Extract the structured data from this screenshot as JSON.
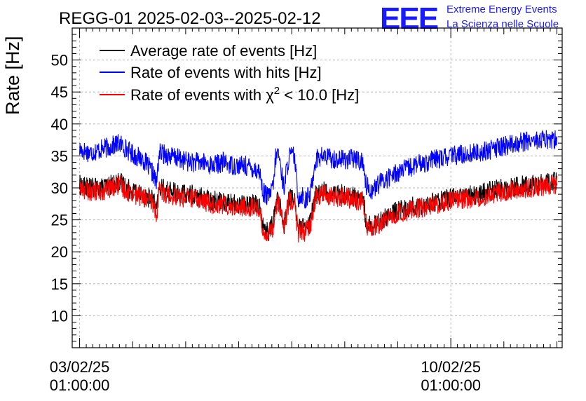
{
  "header": {
    "title": "REGG-01 2025-02-03--2025-02-12",
    "logo_mark": "EEE",
    "logo_line1": "Extreme Energy Events",
    "logo_line2": "La Scienza nelle Scuole"
  },
  "chart_data": {
    "type": "line",
    "title": "REGG-01 2025-02-03--2025-02-12",
    "ylabel": "Rate [Hz]",
    "xlabel": "",
    "ylim": [
      5,
      55
    ],
    "xlim": [
      -0.14,
      9.1
    ],
    "grid": true,
    "legend_position": "top-left",
    "y_ticks": [
      10,
      15,
      20,
      25,
      30,
      35,
      40,
      45,
      50
    ],
    "x_ticks": [
      {
        "x": 0,
        "line1": "03/02/25",
        "line2": "01:00:00"
      },
      {
        "x": 7,
        "line1": "10/02/25",
        "line2": "01:00:00"
      }
    ],
    "x_unit": "days since 03/02/25 01:00:00",
    "legend": [
      {
        "label": "Average rate of events [Hz]",
        "color": "#000000"
      },
      {
        "label": "Rate of events with hits [Hz]",
        "color": "#0000ff"
      },
      {
        "label_prefix": "Rate of events with ",
        "label_symbol": "χ",
        "label_sup": "2",
        "label_suffix": " < 10.0 [Hz]",
        "color": "#ff0000"
      }
    ],
    "series": [
      {
        "name": "Rate of events with hits [Hz]",
        "color": "#0000ff",
        "x": [
          0.0,
          0.2,
          0.4,
          0.6,
          0.75,
          0.9,
          1.05,
          1.2,
          1.4,
          1.45,
          1.5,
          1.7,
          1.9,
          2.1,
          2.3,
          2.5,
          2.7,
          2.9,
          3.1,
          3.3,
          3.4,
          3.45,
          3.55,
          3.65,
          3.7,
          3.75,
          3.85,
          3.95,
          4.05,
          4.12,
          4.2,
          4.25,
          4.35,
          4.45,
          4.6,
          4.8,
          5.0,
          5.2,
          5.35,
          5.4,
          5.5,
          5.7,
          6.0,
          6.5,
          7.0,
          7.5,
          8.0,
          8.5,
          9.0
        ],
        "values": [
          36.0,
          35.5,
          36.0,
          36.5,
          37.0,
          36.0,
          35.0,
          34.5,
          32.0,
          30.5,
          35.5,
          35.0,
          34.5,
          34.0,
          34.0,
          33.5,
          34.0,
          33.5,
          33.5,
          33.0,
          32.5,
          29.5,
          28.5,
          30.0,
          35.0,
          35.5,
          30.0,
          35.0,
          35.0,
          28.5,
          29.0,
          28.0,
          29.0,
          34.5,
          35.0,
          34.5,
          34.5,
          34.5,
          34.0,
          30.5,
          29.5,
          31.0,
          32.5,
          34.0,
          35.0,
          35.5,
          36.5,
          37.5,
          37.5
        ]
      },
      {
        "name": "Average rate of events [Hz]",
        "color": "#000000",
        "x": [
          0.0,
          0.2,
          0.4,
          0.6,
          0.75,
          0.9,
          1.05,
          1.2,
          1.4,
          1.45,
          1.5,
          1.7,
          1.9,
          2.1,
          2.3,
          2.5,
          2.7,
          2.9,
          3.1,
          3.3,
          3.4,
          3.45,
          3.55,
          3.65,
          3.7,
          3.75,
          3.85,
          3.95,
          4.05,
          4.12,
          4.2,
          4.25,
          4.35,
          4.45,
          4.6,
          4.8,
          5.0,
          5.2,
          5.35,
          5.4,
          5.5,
          5.7,
          6.0,
          6.5,
          7.0,
          7.5,
          8.0,
          8.5,
          9.0
        ],
        "values": [
          30.5,
          30.0,
          30.0,
          30.5,
          31.0,
          30.0,
          29.5,
          29.0,
          28.0,
          26.0,
          30.0,
          29.5,
          29.0,
          29.0,
          28.5,
          28.0,
          28.0,
          27.5,
          27.5,
          27.5,
          27.0,
          24.0,
          23.0,
          24.5,
          27.5,
          28.5,
          24.0,
          28.5,
          28.5,
          23.5,
          24.0,
          23.5,
          24.5,
          29.0,
          29.5,
          29.0,
          29.0,
          28.5,
          28.5,
          24.5,
          24.0,
          25.0,
          26.5,
          27.5,
          28.5,
          29.0,
          30.0,
          30.5,
          31.0
        ]
      },
      {
        "name": "Rate of events with χ2 < 10.0 [Hz]",
        "color": "#ff0000",
        "x": [
          0.0,
          0.2,
          0.4,
          0.6,
          0.75,
          0.9,
          1.05,
          1.2,
          1.4,
          1.45,
          1.5,
          1.7,
          1.9,
          2.1,
          2.3,
          2.5,
          2.7,
          2.9,
          3.1,
          3.3,
          3.4,
          3.45,
          3.55,
          3.65,
          3.7,
          3.75,
          3.85,
          3.95,
          4.05,
          4.12,
          4.2,
          4.25,
          4.35,
          4.45,
          4.6,
          4.8,
          5.0,
          5.2,
          5.35,
          5.4,
          5.5,
          5.7,
          6.0,
          6.5,
          7.0,
          7.5,
          8.0,
          8.5,
          9.0
        ],
        "values": [
          30.0,
          29.5,
          29.5,
          30.0,
          30.5,
          29.5,
          29.0,
          28.5,
          27.5,
          25.5,
          29.5,
          29.0,
          28.5,
          28.5,
          28.0,
          27.5,
          27.5,
          27.0,
          27.0,
          27.0,
          26.5,
          23.5,
          22.5,
          24.0,
          27.0,
          28.0,
          23.5,
          28.0,
          28.0,
          23.0,
          23.5,
          23.0,
          24.0,
          28.5,
          29.0,
          28.5,
          28.5,
          28.0,
          28.0,
          24.0,
          23.5,
          24.5,
          26.0,
          27.0,
          28.0,
          28.5,
          29.5,
          30.0,
          30.5
        ]
      }
    ]
  }
}
